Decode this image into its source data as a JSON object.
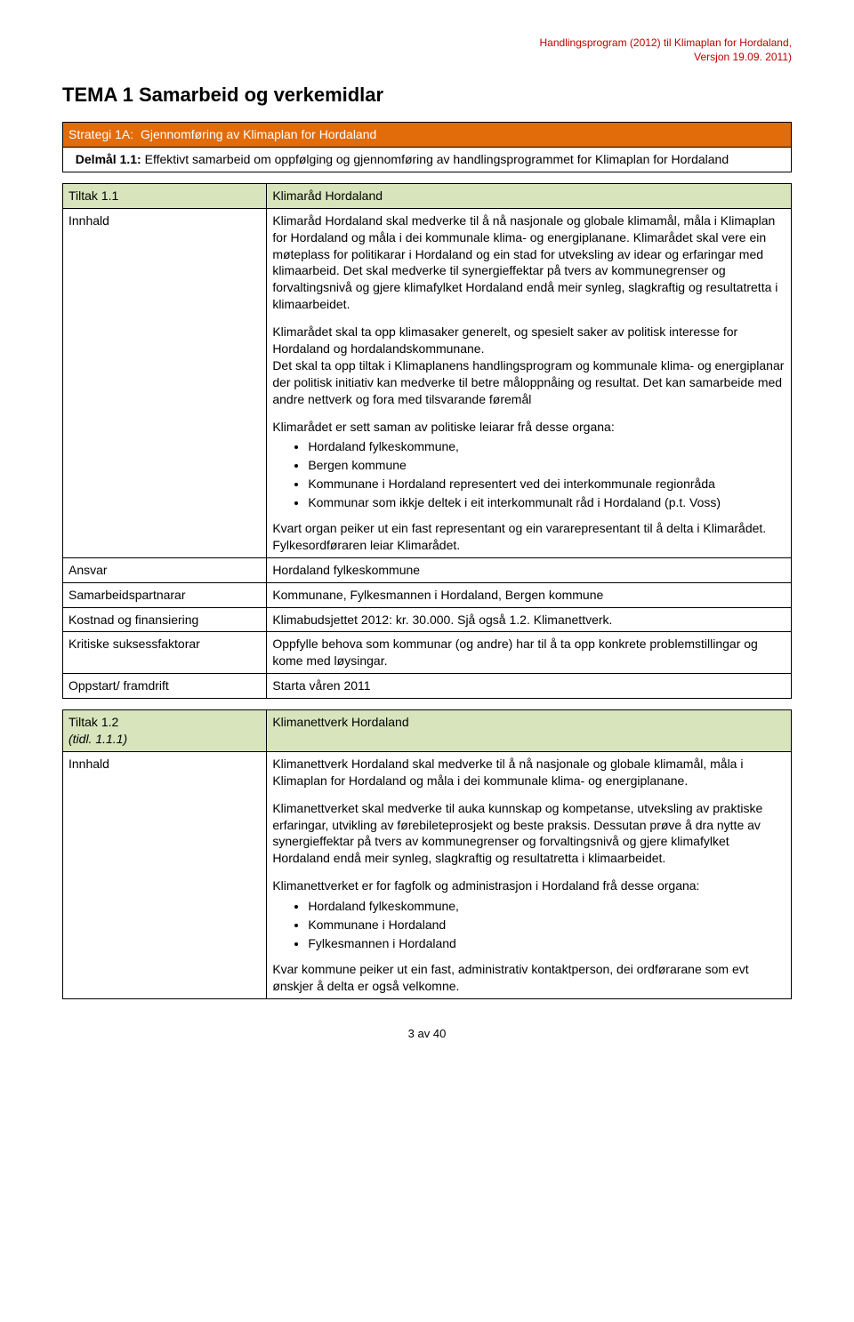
{
  "header": {
    "line1": "Handlingsprogram (2012) til Klimaplan for Hordaland,",
    "line2": "Versjon 19.09. 2011)"
  },
  "title": "TEMA 1 Samarbeid og verkemidlar",
  "strategi": {
    "label": "Strategi 1A:",
    "text": "Gjennomføring av Klimaplan for Hordaland"
  },
  "delmal": {
    "label": "Delmål 1.1:",
    "text": "Effektivt samarbeid om oppfølging og gjennomføring av handlingsprogrammet for Klimaplan for Hordaland"
  },
  "tiltak1": {
    "id": "Tiltak 1.1",
    "title": "Klimaråd Hordaland",
    "innhald_label": "Innhald",
    "p1": "Klimaråd Hordaland skal medverke til å nå nasjonale og globale klimamål, måla i Klimaplan for Hordaland og måla i dei kommunale klima- og energiplanane. Klimarådet skal vere ein møteplass for politikarar i Hordaland og ein stad for utveksling av idear og erfaringar med klimaarbeid. Det skal medverke til synergieffektar på tvers av kommunegrenser og forvaltingsnivå og gjere klimafylket Hordaland endå meir synleg, slagkraftig og resultatretta i klimaarbeidet.",
    "p2": "Klimarådet skal ta opp klimasaker generelt, og spesielt saker av politisk interesse for Hordaland og hordalandskommunane.",
    "p3": "Det skal ta opp tiltak i Klimaplanens handlingsprogram og kommunale klima- og energiplanar der politisk initiativ kan medverke til betre måloppnåing og resultat. Det kan samarbeide med andre nettverk og fora med tilsvarande føremål",
    "p4": "Klimarådet er sett saman av politiske leiarar frå desse organa:",
    "li1": "Hordaland fylkeskommune,",
    "li2": "Bergen kommune",
    "li3": "Kommunane i Hordaland representert ved dei interkommunale regionråda",
    "li4": "Kommunar som ikkje deltek i eit interkommunalt råd i Hordaland (p.t. Voss)",
    "p5": "Kvart organ peiker ut ein fast representant og ein vararepresentant til å delta i Klimarådet. Fylkesordføraren leiar Klimarådet.",
    "rows": {
      "ansvar": {
        "label": "Ansvar",
        "value": "Hordaland fylkeskommune"
      },
      "samarbeid": {
        "label": "Samarbeidspartnarar",
        "value": "Kommunane, Fylkesmannen i Hordaland, Bergen kommune"
      },
      "kostnad": {
        "label": "Kostnad og finansiering",
        "value": "Klimabudsjettet 2012: kr. 30.000. Sjå også 1.2. Klimanettverk."
      },
      "kritiske": {
        "label": "Kritiske suksessfaktorar",
        "value": "Oppfylle behova som kommunar (og andre) har til å ta opp konkrete problemstillingar og kome med løysingar."
      },
      "oppstart": {
        "label": "Oppstart/ framdrift",
        "value": "Starta våren 2011"
      }
    }
  },
  "tiltak2": {
    "id": "Tiltak 1.2",
    "tidl": "(tidl. 1.1.1)",
    "title": "Klimanettverk Hordaland",
    "innhald_label": "Innhald",
    "p1": "Klimanettverk Hordaland skal medverke til å nå nasjonale og globale klimamål, måla i Klimaplan for Hordaland og måla i dei kommunale klima- og energiplanane.",
    "p2": "Klimanettverket skal medverke til auka kunnskap og kompetanse, utveksling av praktiske erfaringar, utvikling av førebileteprosjekt og beste praksis. Dessutan prøve å dra nytte av synergieffektar på tvers av kommunegrenser og forvaltingsnivå og gjere klimafylket Hordaland endå meir synleg, slagkraftig og resultatretta i klimaarbeidet.",
    "p3": "Klimanettverket er for fagfolk og administrasjon i Hordaland frå desse organa:",
    "li1": "Hordaland fylkeskommune,",
    "li2": "Kommunane i Hordaland",
    "li3": "Fylkesmannen i Hordaland",
    "p4": "Kvar kommune peiker ut ein fast, administrativ kontaktperson, dei ordførarane som evt ønskjer å delta er også velkomne."
  },
  "footer": "3 av 40",
  "colors": {
    "header_red": "#c00000",
    "strategi_bg": "#e26b0a",
    "tiltak_bg": "#d8e4bc"
  }
}
